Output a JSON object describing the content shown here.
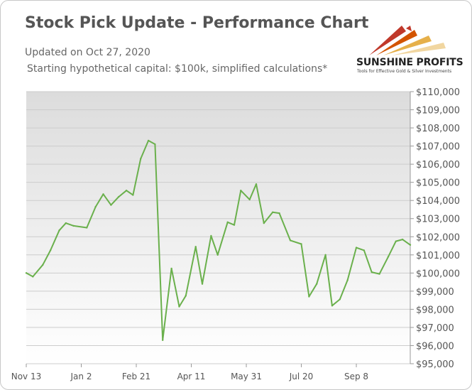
{
  "header": {
    "title": "Stock Pick Update - Performance Chart",
    "updated": "Updated on Oct 27, 2020",
    "capital_note": "Starting hypothetical capital: $100k, simplified calculations*"
  },
  "logo": {
    "name": "SUNSHINE PROFITS",
    "tagline": "Tools for Effective Gold & Silver Investments"
  },
  "colors": {
    "line": "#6ab04c",
    "plot_bg_top": "#dcdcdc",
    "plot_bg_bottom": "#ffffff",
    "grid": "#cccccc",
    "text": "#555555"
  },
  "chart_data": {
    "type": "line",
    "title": "Stock Pick Update - Performance Chart",
    "xlabel": "",
    "ylabel": "",
    "x_tick_labels": [
      "Nov 13",
      "Jan 2",
      "Feb 21",
      "Apr 11",
      "May 31",
      "Jul 20",
      "Sep 8"
    ],
    "x_range": [
      "2019-11-13",
      "2020-10-27"
    ],
    "ylim": [
      95000,
      110000
    ],
    "y_ticks": [
      95000,
      96000,
      97000,
      98000,
      99000,
      100000,
      101000,
      102000,
      103000,
      104000,
      105000,
      106000,
      107000,
      108000,
      109000,
      110000
    ],
    "y_tick_labels": [
      "$95,000",
      "$96,000",
      "$97,000",
      "$98,000",
      "$99,000",
      "$100,000",
      "$101,000",
      "$102,000",
      "$103,000",
      "$104,000",
      "$105,000",
      "$106,000",
      "$107,000",
      "$108,000",
      "$109,000",
      "$110,000"
    ],
    "grid": true,
    "legend": "none",
    "series": [
      {
        "x": [
          "2019-11-13",
          "2019-11-19",
          "2019-11-28",
          "2019-12-05",
          "2019-12-13",
          "2019-12-19",
          "2019-12-26",
          "2020-01-07",
          "2020-01-15",
          "2020-01-22",
          "2020-01-29",
          "2020-02-05",
          "2020-02-12",
          "2020-02-18",
          "2020-02-25",
          "2020-03-03",
          "2020-03-09",
          "2020-03-16",
          "2020-03-24",
          "2020-03-31",
          "2020-04-06",
          "2020-04-15",
          "2020-04-21",
          "2020-04-29",
          "2020-05-05",
          "2020-05-14",
          "2020-05-20",
          "2020-05-26",
          "2020-06-03",
          "2020-06-09",
          "2020-06-16",
          "2020-06-24",
          "2020-06-30",
          "2020-07-10",
          "2020-07-20",
          "2020-07-27",
          "2020-08-03",
          "2020-08-11",
          "2020-08-17",
          "2020-08-24",
          "2020-08-31",
          "2020-09-08",
          "2020-09-15",
          "2020-09-22",
          "2020-09-29",
          "2020-10-07",
          "2020-10-14",
          "2020-10-20",
          "2020-10-27"
        ],
        "values": [
          100000,
          99800,
          100450,
          101250,
          102350,
          102750,
          102600,
          102500,
          103650,
          104350,
          103750,
          104200,
          104550,
          104300,
          106300,
          107300,
          107100,
          96300,
          100250,
          98150,
          98750,
          101450,
          99400,
          102050,
          101000,
          102800,
          102650,
          104550,
          104050,
          104900,
          102750,
          103350,
          103300,
          101800,
          101600,
          98700,
          99400,
          101000,
          98200,
          98550,
          99600,
          101400,
          101250,
          100050,
          99950,
          100900,
          101750,
          101850,
          101550
        ]
      }
    ]
  }
}
